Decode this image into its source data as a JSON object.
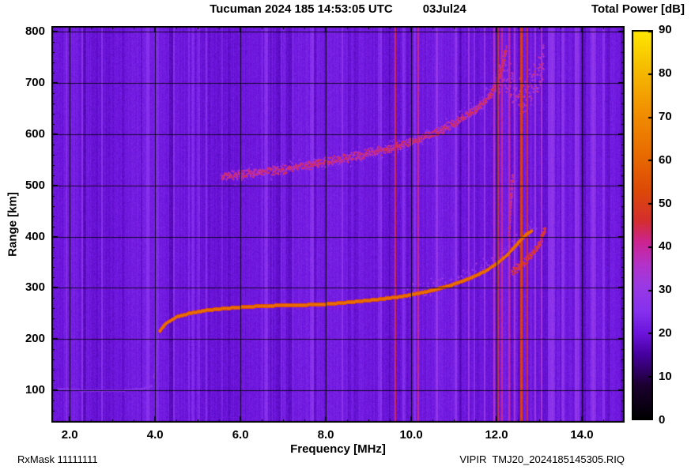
{
  "header": {
    "title": "Tucuman 2024 185 14:53:05 UTC",
    "date": "03Jul24",
    "colorbar_title": "Total Power [dB]"
  },
  "footer": {
    "rx_mask": "RxMask 11111111",
    "file_id": "VIPIR  TMJ20_2024185145305.RIQ"
  },
  "chart_data": {
    "type": "heatmap",
    "title": "Tucuman 2024 185 14:53:05 UTC  03Jul24",
    "xlabel": "Frequency [MHz]",
    "ylabel": "Range [km]",
    "colorbar_label": "Total Power [dB]",
    "xlim": [
      1.57,
      15.0
    ],
    "ylim": [
      37,
      811
    ],
    "x_ticks": [
      2.0,
      4.0,
      6.0,
      8.0,
      10.0,
      12.0,
      14.0
    ],
    "x_tick_labels": [
      "2.0",
      "4.0",
      "6.0",
      "8.0",
      "10.0",
      "12.0",
      "14.0"
    ],
    "x_minor_step": 0.5,
    "y_ticks": [
      100,
      200,
      300,
      400,
      500,
      600,
      700,
      800
    ],
    "y_minor_step": 20,
    "grid": true,
    "background_db": 21,
    "colorbar": {
      "min": 0,
      "max": 90,
      "ticks": [
        0,
        10,
        20,
        30,
        40,
        50,
        60,
        70,
        80,
        90
      ]
    },
    "colormap": [
      {
        "v": 0,
        "c": "#000000"
      },
      {
        "v": 8,
        "c": "#1c0030"
      },
      {
        "v": 15,
        "c": "#46009e"
      },
      {
        "v": 20,
        "c": "#6c14dc"
      },
      {
        "v": 25,
        "c": "#8531ee"
      },
      {
        "v": 31,
        "c": "#9a3ae4"
      },
      {
        "v": 36,
        "c": "#b432c8"
      },
      {
        "v": 41,
        "c": "#cc2492"
      },
      {
        "v": 46,
        "c": "#d42f2f"
      },
      {
        "v": 53,
        "c": "#dd4a08"
      },
      {
        "v": 62,
        "c": "#e96e00"
      },
      {
        "v": 72,
        "c": "#f29300"
      },
      {
        "v": 81,
        "c": "#f5bc00"
      },
      {
        "v": 90,
        "c": "#ffe800"
      }
    ],
    "traces": [
      {
        "name": "E-layer-echo",
        "style": "solid",
        "db": 27,
        "width_km": 6,
        "points": [
          [
            1.72,
            104
          ],
          [
            2.2,
            101
          ],
          [
            2.8,
            100
          ],
          [
            3.3,
            101
          ],
          [
            3.7,
            104
          ],
          [
            3.92,
            110
          ]
        ]
      },
      {
        "name": "E-F-cusp",
        "style": "speckle",
        "db": 27,
        "width_km": 8,
        "density": 1.5,
        "points": [
          [
            3.96,
            125
          ],
          [
            4.0,
            150
          ],
          [
            4.05,
            185
          ],
          [
            4.08,
            208
          ]
        ]
      },
      {
        "name": "F-trace-first-hop",
        "style": "solid",
        "db": 63,
        "width_km": 7,
        "points": [
          [
            4.1,
            216
          ],
          [
            4.25,
            232
          ],
          [
            4.5,
            244
          ],
          [
            4.8,
            251
          ],
          [
            5.2,
            257
          ],
          [
            5.7,
            261
          ],
          [
            6.2,
            264
          ],
          [
            6.8,
            266
          ],
          [
            7.4,
            267
          ],
          [
            8.0,
            269
          ],
          [
            8.6,
            273
          ],
          [
            9.2,
            278
          ],
          [
            9.7,
            283
          ],
          [
            10.1,
            289
          ],
          [
            10.5,
            296
          ],
          [
            10.9,
            305
          ],
          [
            11.3,
            317
          ],
          [
            11.7,
            332
          ],
          [
            12.0,
            348
          ],
          [
            12.25,
            366
          ],
          [
            12.45,
            384
          ],
          [
            12.6,
            398
          ],
          [
            12.72,
            407
          ],
          [
            12.82,
            412
          ]
        ]
      },
      {
        "name": "F-trace-x-mode",
        "style": "speckle",
        "db": 50,
        "width_km": 10,
        "density": 2,
        "points": [
          [
            12.35,
            332
          ],
          [
            12.55,
            344
          ],
          [
            12.72,
            357
          ],
          [
            12.88,
            372
          ],
          [
            13.0,
            388
          ],
          [
            13.08,
            404
          ],
          [
            13.14,
            418
          ]
        ]
      },
      {
        "name": "spread-F-cusp",
        "style": "speckle",
        "db": 45,
        "width_km": 20,
        "density": 1.2,
        "points": [
          [
            12.28,
            400
          ],
          [
            12.33,
            470
          ],
          [
            12.37,
            520
          ]
        ]
      },
      {
        "name": "F-trace-spread-glow",
        "style": "speckle",
        "db": 33,
        "width_km": 18,
        "density": 0.7,
        "points": [
          [
            9.8,
            292
          ],
          [
            10.4,
            302
          ],
          [
            10.9,
            314
          ],
          [
            11.4,
            330
          ],
          [
            11.8,
            347
          ],
          [
            12.1,
            364
          ],
          [
            12.4,
            387
          ],
          [
            12.7,
            410
          ],
          [
            12.95,
            427
          ]
        ]
      },
      {
        "name": "second-hop-trace",
        "style": "speckle",
        "db": 46,
        "width_km": 10,
        "density": 2.2,
        "points": [
          [
            5.55,
            517
          ],
          [
            6.0,
            522
          ],
          [
            6.5,
            527
          ],
          [
            7.0,
            533
          ],
          [
            7.5,
            539
          ],
          [
            8.0,
            546
          ],
          [
            8.5,
            554
          ],
          [
            9.0,
            563
          ],
          [
            9.5,
            573
          ],
          [
            9.9,
            583
          ],
          [
            10.3,
            595
          ],
          [
            10.7,
            609
          ],
          [
            11.1,
            626
          ],
          [
            11.5,
            648
          ],
          [
            11.8,
            672
          ],
          [
            12.0,
            698
          ],
          [
            12.1,
            722
          ],
          [
            12.18,
            752
          ],
          [
            12.22,
            770
          ]
        ]
      },
      {
        "name": "second-hop-spread-glow",
        "style": "speckle",
        "db": 30,
        "width_km": 24,
        "density": 0.8,
        "points": [
          [
            5.5,
            518
          ],
          [
            6.5,
            528
          ],
          [
            7.5,
            540
          ],
          [
            8.5,
            555
          ],
          [
            9.5,
            574
          ],
          [
            10.3,
            596
          ],
          [
            11.0,
            622
          ],
          [
            11.6,
            655
          ],
          [
            12.0,
            700
          ]
        ]
      },
      {
        "name": "spread-F-patch",
        "style": "speckle",
        "db": 42,
        "width_km": 45,
        "density": 1.4,
        "points": [
          [
            11.98,
            690
          ],
          [
            12.12,
            720
          ],
          [
            12.3,
            700
          ],
          [
            12.45,
            672
          ],
          [
            12.6,
            665
          ],
          [
            12.8,
            690
          ],
          [
            13.0,
            720
          ],
          [
            13.1,
            745
          ]
        ]
      }
    ],
    "rfi_lines": [
      {
        "f": 4.45,
        "db": 26,
        "width": 2
      },
      {
        "f": 5.2,
        "db": 26,
        "width": 2
      },
      {
        "f": 6.6,
        "db": 27,
        "width": 4
      },
      {
        "f": 7.65,
        "db": 26,
        "width": 3
      },
      {
        "f": 9.3,
        "db": 27,
        "width": 2
      },
      {
        "f": 9.62,
        "db": 45,
        "width": 2
      },
      {
        "f": 10.17,
        "db": 42,
        "width": 2
      },
      {
        "f": 10.6,
        "db": 30,
        "width": 3
      },
      {
        "f": 11.05,
        "db": 29,
        "width": 2
      },
      {
        "f": 11.35,
        "db": 31,
        "width": 2
      },
      {
        "f": 11.72,
        "db": 30,
        "width": 2
      },
      {
        "f": 11.95,
        "db": 36,
        "width": 2
      },
      {
        "f": 12.03,
        "db": 44,
        "width": 2
      },
      {
        "f": 12.12,
        "db": 41,
        "width": 2
      },
      {
        "f": 12.3,
        "db": 40,
        "width": 2
      },
      {
        "f": 12.42,
        "db": 34,
        "width": 2
      },
      {
        "f": 12.58,
        "db": 52,
        "width": 3
      },
      {
        "f": 12.72,
        "db": 46,
        "width": 2
      },
      {
        "f": 12.9,
        "db": 31,
        "width": 2
      },
      {
        "f": 13.05,
        "db": 34,
        "width": 2
      },
      {
        "f": 13.3,
        "db": 29,
        "width": 7
      },
      {
        "f": 13.55,
        "db": 28,
        "width": 4
      },
      {
        "f": 13.9,
        "db": 27,
        "width": 3
      },
      {
        "f": 14.25,
        "db": 29,
        "width": 7
      },
      {
        "f": 14.5,
        "db": 27,
        "width": 3
      }
    ]
  }
}
